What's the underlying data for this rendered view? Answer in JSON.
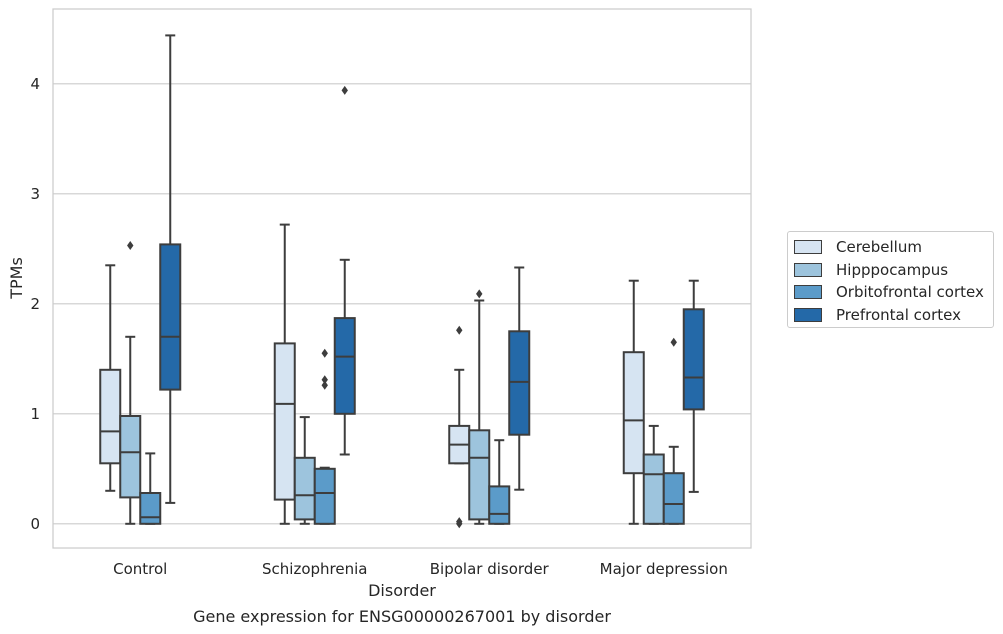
{
  "chart_data": {
    "type": "box",
    "title": "",
    "caption": "Gene expression for ENSG00000267001 by disorder",
    "xlabel": "Disorder",
    "ylabel": "TPMs",
    "ylim": [
      -0.22,
      4.68
    ],
    "yticks": [
      0,
      1,
      2,
      3,
      4
    ],
    "grid": "horizontal",
    "legend_position": "right",
    "categories": [
      "Control",
      "Schizophrenia",
      "Bipolar disorder",
      "Major depression"
    ],
    "series": [
      {
        "name": "Cerebellum",
        "color": "#d6e4f2",
        "boxes": [
          {
            "whisker_low": 0.3,
            "q1": 0.55,
            "median": 0.84,
            "q3": 1.4,
            "whisker_high": 2.35,
            "outliers": []
          },
          {
            "whisker_low": 0.0,
            "q1": 0.22,
            "median": 1.09,
            "q3": 1.64,
            "whisker_high": 2.72,
            "outliers": []
          },
          {
            "whisker_low": 0.55,
            "q1": 0.55,
            "median": 0.72,
            "q3": 0.89,
            "whisker_high": 1.4,
            "outliers": [
              0.0,
              0.02,
              1.76
            ]
          },
          {
            "whisker_low": 0.0,
            "q1": 0.46,
            "median": 0.94,
            "q3": 1.56,
            "whisker_high": 2.21,
            "outliers": []
          }
        ]
      },
      {
        "name": "Hipppocampus",
        "color": "#9dc4dd",
        "boxes": [
          {
            "whisker_low": 0.0,
            "q1": 0.24,
            "median": 0.65,
            "q3": 0.98,
            "whisker_high": 1.7,
            "outliers": [
              2.53
            ]
          },
          {
            "whisker_low": 0.0,
            "q1": 0.04,
            "median": 0.26,
            "q3": 0.6,
            "whisker_high": 0.97,
            "outliers": []
          },
          {
            "whisker_low": 0.0,
            "q1": 0.04,
            "median": 0.6,
            "q3": 0.85,
            "whisker_high": 2.03,
            "outliers": [
              2.09
            ]
          },
          {
            "whisker_low": 0.0,
            "q1": 0.0,
            "median": 0.45,
            "q3": 0.63,
            "whisker_high": 0.89,
            "outliers": []
          }
        ]
      },
      {
        "name": "Orbitofrontal cortex",
        "color": "#5b9bc9",
        "boxes": [
          {
            "whisker_low": 0.0,
            "q1": 0.0,
            "median": 0.06,
            "q3": 0.28,
            "whisker_high": 0.64,
            "outliers": []
          },
          {
            "whisker_low": 0.0,
            "q1": 0.0,
            "median": 0.28,
            "q3": 0.5,
            "whisker_high": 0.51,
            "outliers": [
              1.26,
              1.31,
              1.55
            ]
          },
          {
            "whisker_low": 0.0,
            "q1": 0.0,
            "median": 0.09,
            "q3": 0.34,
            "whisker_high": 0.76,
            "outliers": []
          },
          {
            "whisker_low": 0.0,
            "q1": 0.0,
            "median": 0.18,
            "q3": 0.46,
            "whisker_high": 0.7,
            "outliers": [
              1.65
            ]
          }
        ]
      },
      {
        "name": "Prefrontal cortex",
        "color": "#2469a8",
        "boxes": [
          {
            "whisker_low": 0.19,
            "q1": 1.22,
            "median": 1.7,
            "q3": 2.54,
            "whisker_high": 4.44,
            "outliers": []
          },
          {
            "whisker_low": 0.63,
            "q1": 1.0,
            "median": 1.52,
            "q3": 1.87,
            "whisker_high": 2.4,
            "outliers": [
              3.94
            ]
          },
          {
            "whisker_low": 0.31,
            "q1": 0.81,
            "median": 1.29,
            "q3": 1.75,
            "whisker_high": 2.33,
            "outliers": []
          },
          {
            "whisker_low": 0.29,
            "q1": 1.04,
            "median": 1.33,
            "q3": 1.95,
            "whisker_high": 2.21,
            "outliers": []
          }
        ]
      }
    ]
  }
}
